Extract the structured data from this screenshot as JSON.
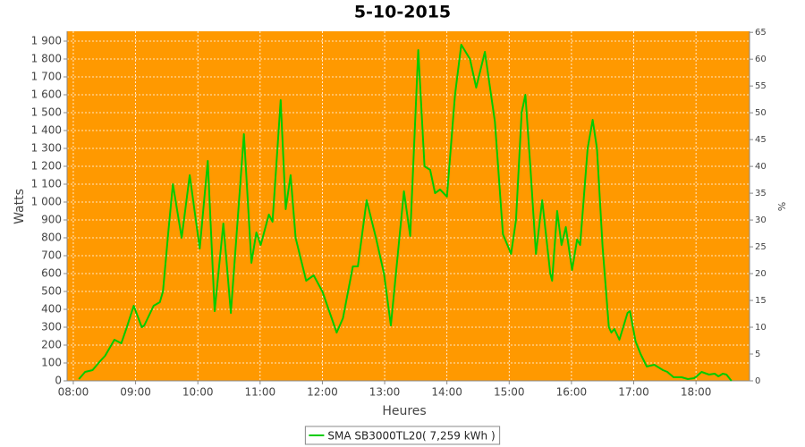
{
  "chart_data": {
    "type": "line",
    "title": "5-10-2015",
    "xlabel": "Heures",
    "ylabel": "Watts",
    "y2label": "%",
    "x": [
      8.09,
      8.19,
      8.31,
      8.43,
      8.51,
      8.66,
      8.77,
      8.86,
      8.97,
      9.1,
      9.14,
      9.29,
      9.39,
      9.44,
      9.53,
      9.6,
      9.74,
      9.87,
      10.03,
      10.16,
      10.27,
      10.41,
      10.53,
      10.74,
      10.86,
      10.94,
      11.01,
      11.14,
      11.2,
      11.33,
      11.41,
      11.49,
      11.57,
      11.74,
      11.86,
      12.0,
      12.23,
      12.33,
      12.49,
      12.57,
      12.71,
      12.86,
      12.99,
      13.1,
      13.31,
      13.41,
      13.54,
      13.64,
      13.73,
      13.81,
      13.89,
      14.0,
      14.13,
      14.23,
      14.37,
      14.47,
      14.61,
      14.77,
      14.9,
      15.03,
      15.11,
      15.2,
      15.26,
      15.34,
      15.43,
      15.53,
      15.66,
      15.69,
      15.77,
      15.84,
      15.91,
      16.01,
      16.09,
      16.14,
      16.26,
      16.34,
      16.41,
      16.5,
      16.6,
      16.64,
      16.69,
      16.77,
      16.9,
      16.94,
      17.03,
      17.11,
      17.21,
      17.33,
      17.47,
      17.54,
      17.64,
      17.77,
      17.87,
      17.97,
      18.01,
      18.09,
      18.21,
      18.3,
      18.36,
      18.43,
      18.49,
      18.57
    ],
    "series": [
      {
        "name": "SMA SB3000TL20( 7,259 kWh )",
        "color": "#00cc00",
        "values": [
          10,
          50,
          60,
          110,
          140,
          230,
          210,
          300,
          420,
          300,
          310,
          420,
          440,
          500,
          850,
          1100,
          800,
          1150,
          740,
          1230,
          390,
          880,
          380,
          1380,
          660,
          830,
          760,
          930,
          890,
          1570,
          960,
          1150,
          800,
          560,
          590,
          500,
          270,
          350,
          640,
          640,
          1010,
          800,
          600,
          310,
          1060,
          810,
          1850,
          1200,
          1180,
          1050,
          1070,
          1030,
          1600,
          1880,
          1800,
          1640,
          1840,
          1450,
          820,
          710,
          900,
          1500,
          1600,
          1200,
          710,
          1010,
          600,
          560,
          950,
          760,
          860,
          620,
          790,
          760,
          1300,
          1460,
          1300,
          750,
          300,
          270,
          290,
          230,
          380,
          390,
          220,
          150,
          80,
          90,
          60,
          50,
          20,
          20,
          10,
          15,
          25,
          50,
          35,
          40,
          25,
          40,
          35,
          0
        ]
      }
    ],
    "xlim": [
      7.9,
      18.86
    ],
    "xticks": [
      {
        "value": 8,
        "label": "08:00"
      },
      {
        "value": 9,
        "label": "09:00"
      },
      {
        "value": 10,
        "label": "10:00"
      },
      {
        "value": 11,
        "label": "11:00"
      },
      {
        "value": 12,
        "label": "12:00"
      },
      {
        "value": 13,
        "label": "13:00"
      },
      {
        "value": 14,
        "label": "14:00"
      },
      {
        "value": 15,
        "label": "15:00"
      },
      {
        "value": 16,
        "label": "16:00"
      },
      {
        "value": 17,
        "label": "17:00"
      },
      {
        "value": 18,
        "label": "18:00"
      }
    ],
    "ylim": [
      0,
      1955
    ],
    "yticks": [
      0,
      100,
      200,
      300,
      400,
      500,
      600,
      700,
      800,
      900,
      {
        "value": 1000,
        "label": "1 000"
      },
      {
        "value": 1100,
        "label": "1 100"
      },
      {
        "value": 1200,
        "label": "1 200"
      },
      {
        "value": 1300,
        "label": "1 300"
      },
      {
        "value": 1400,
        "label": "1 400"
      },
      {
        "value": 1500,
        "label": "1 500"
      },
      {
        "value": 1600,
        "label": "1 600"
      },
      {
        "value": 1700,
        "label": "1 700"
      },
      {
        "value": 1800,
        "label": "1 800"
      },
      {
        "value": 1900,
        "label": "1 900"
      }
    ],
    "y2lim": [
      0,
      65.2
    ],
    "y2ticks": [
      0,
      5,
      10,
      15,
      20,
      25,
      30,
      35,
      40,
      45,
      50,
      55,
      60,
      65
    ],
    "grid": true,
    "background": "#ff9900",
    "legend": "bottom"
  }
}
